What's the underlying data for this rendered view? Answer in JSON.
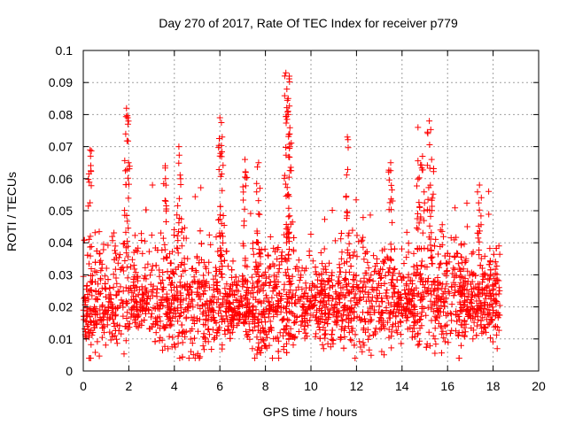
{
  "chart_data": {
    "type": "scatter",
    "title": "Day 270 of 2017, Rate Of TEC Index for receiver p779",
    "xlabel": "GPS time / hours",
    "ylabel": "ROTI / TECUs",
    "xlim": [
      0,
      20
    ],
    "ylim": [
      0,
      0.1
    ],
    "xticks": [
      0,
      2,
      4,
      6,
      8,
      10,
      12,
      14,
      16,
      18,
      20
    ],
    "xtick_labels": [
      "0",
      "2",
      "4",
      "6",
      "8",
      "10",
      "12",
      "14",
      "16",
      "18",
      "20"
    ],
    "yticks": [
      0,
      0.01,
      0.02,
      0.03,
      0.04,
      0.05,
      0.06,
      0.07,
      0.08,
      0.09,
      0.1
    ],
    "ytick_labels": [
      "0",
      "0.01",
      "0.02",
      "0.03",
      "0.04",
      "0.05",
      "0.06",
      "0.07",
      "0.08",
      "0.09",
      "0.1"
    ],
    "grid": true,
    "marker": "+",
    "color": "#ff0000",
    "x_coverage": [
      0,
      18.3
    ],
    "typical_range": [
      0.005,
      0.045
    ],
    "median_level": 0.02,
    "peaks": [
      {
        "x": 0.3,
        "y": 0.069
      },
      {
        "x": 1.9,
        "y": 0.082
      },
      {
        "x": 1.95,
        "y": 0.079
      },
      {
        "x": 4.2,
        "y": 0.07
      },
      {
        "x": 3.6,
        "y": 0.064
      },
      {
        "x": 6.0,
        "y": 0.079
      },
      {
        "x": 6.1,
        "y": 0.073
      },
      {
        "x": 7.1,
        "y": 0.066
      },
      {
        "x": 7.7,
        "y": 0.065
      },
      {
        "x": 8.9,
        "y": 0.093
      },
      {
        "x": 9.05,
        "y": 0.092
      },
      {
        "x": 9.0,
        "y": 0.085
      },
      {
        "x": 9.0,
        "y": 0.08
      },
      {
        "x": 11.6,
        "y": 0.073
      },
      {
        "x": 13.5,
        "y": 0.065
      },
      {
        "x": 14.7,
        "y": 0.076
      },
      {
        "x": 14.9,
        "y": 0.067
      },
      {
        "x": 15.2,
        "y": 0.078
      },
      {
        "x": 15.3,
        "y": 0.066
      },
      {
        "x": 17.4,
        "y": 0.058
      }
    ]
  }
}
